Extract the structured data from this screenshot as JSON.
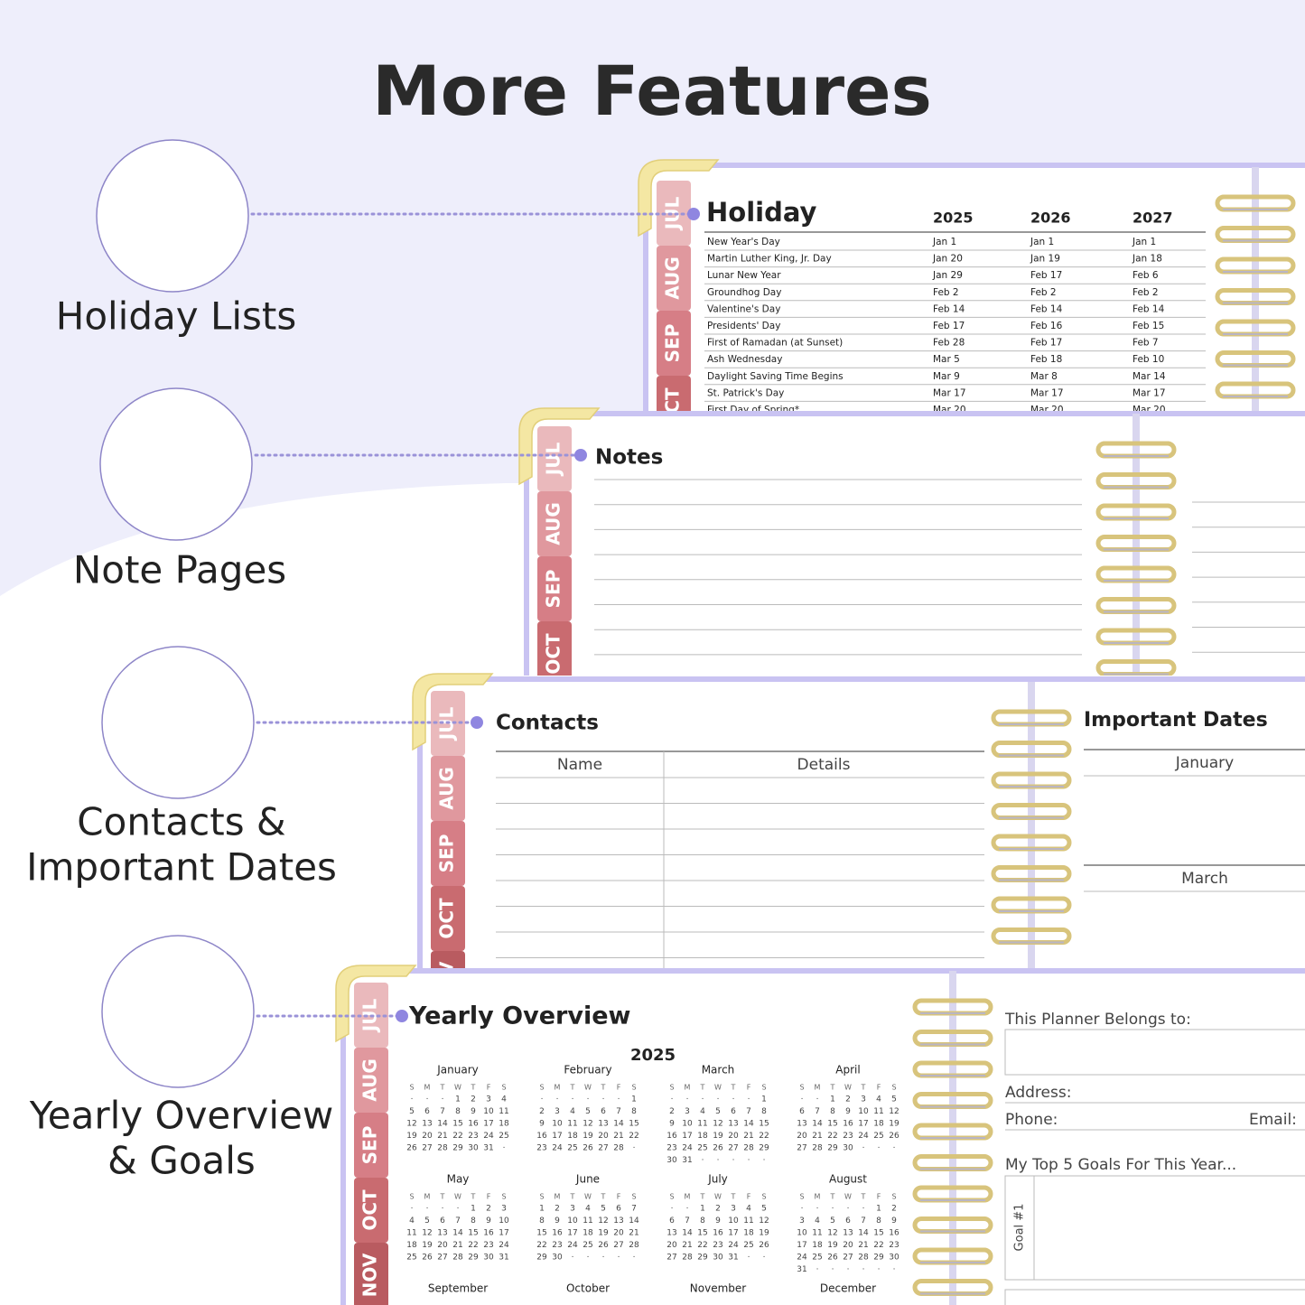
{
  "title": "More Features",
  "features": [
    {
      "lines": [
        "Holiday Lists"
      ]
    },
    {
      "lines": [
        "Note Pages"
      ]
    },
    {
      "lines": [
        "Contacts &",
        "Important Dates"
      ]
    },
    {
      "lines": [
        "Yearly Overview",
        "& Goals"
      ]
    }
  ],
  "tabs": [
    "JUL",
    "AUG",
    "SEP",
    "OCT",
    "NOV"
  ],
  "holiday": {
    "title": "Holiday",
    "years": [
      "2025",
      "2026",
      "2027"
    ],
    "rows": [
      [
        "New Year's Day",
        "Jan 1",
        "Jan 1",
        "Jan 1"
      ],
      [
        "Martin Luther King, Jr. Day",
        "Jan 20",
        "Jan 19",
        "Jan 18"
      ],
      [
        "Lunar New Year",
        "Jan 29",
        "Feb 17",
        "Feb 6"
      ],
      [
        "Groundhog Day",
        "Feb 2",
        "Feb 2",
        "Feb 2"
      ],
      [
        "Valentine's Day",
        "Feb 14",
        "Feb 14",
        "Feb 14"
      ],
      [
        "Presidents' Day",
        "Feb 17",
        "Feb 16",
        "Feb 15"
      ],
      [
        "First of Ramadan (at Sunset)",
        "Feb 28",
        "Feb 17",
        "Feb 7"
      ],
      [
        "Ash Wednesday",
        "Mar 5",
        "Feb 18",
        "Feb 10"
      ],
      [
        "Daylight Saving Time Begins",
        "Mar 9",
        "Mar 8",
        "Mar 14"
      ],
      [
        "St. Patrick's Day",
        "Mar 17",
        "Mar 17",
        "Mar 17"
      ],
      [
        "First Day of Spring*",
        "Mar 20",
        "Mar 20",
        "Mar 20"
      ]
    ]
  },
  "notes": {
    "title": "Notes"
  },
  "contacts": {
    "title": "Contacts",
    "columns": [
      "Name",
      "Details"
    ]
  },
  "important_dates": {
    "title": "Important Dates",
    "months": [
      "January",
      "March"
    ]
  },
  "yearly": {
    "title": "Yearly Overview",
    "year": "2025",
    "weekdays": [
      "S",
      "M",
      "T",
      "W",
      "T",
      "F",
      "S"
    ],
    "months": [
      {
        "name": "January",
        "weeks": [
          [
            "·",
            "·",
            "·",
            "1",
            "2",
            "3",
            "4"
          ],
          [
            "5",
            "6",
            "7",
            "8",
            "9",
            "10",
            "11"
          ],
          [
            "12",
            "13",
            "14",
            "15",
            "16",
            "17",
            "18"
          ],
          [
            "19",
            "20",
            "21",
            "22",
            "23",
            "24",
            "25"
          ],
          [
            "26",
            "27",
            "28",
            "29",
            "30",
            "31",
            "·"
          ]
        ]
      },
      {
        "name": "February",
        "weeks": [
          [
            "·",
            "·",
            "·",
            "·",
            "·",
            "·",
            "1"
          ],
          [
            "2",
            "3",
            "4",
            "5",
            "6",
            "7",
            "8"
          ],
          [
            "9",
            "10",
            "11",
            "12",
            "13",
            "14",
            "15"
          ],
          [
            "16",
            "17",
            "18",
            "19",
            "20",
            "21",
            "22"
          ],
          [
            "23",
            "24",
            "25",
            "26",
            "27",
            "28",
            "·"
          ]
        ]
      },
      {
        "name": "March",
        "weeks": [
          [
            "·",
            "·",
            "·",
            "·",
            "·",
            "·",
            "1"
          ],
          [
            "2",
            "3",
            "4",
            "5",
            "6",
            "7",
            "8"
          ],
          [
            "9",
            "10",
            "11",
            "12",
            "13",
            "14",
            "15"
          ],
          [
            "16",
            "17",
            "18",
            "19",
            "20",
            "21",
            "22"
          ],
          [
            "23",
            "24",
            "25",
            "26",
            "27",
            "28",
            "29"
          ],
          [
            "30",
            "31",
            "·",
            "·",
            "·",
            "·",
            "·"
          ]
        ]
      },
      {
        "name": "April",
        "weeks": [
          [
            "·",
            "·",
            "1",
            "2",
            "3",
            "4",
            "5"
          ],
          [
            "6",
            "7",
            "8",
            "9",
            "10",
            "11",
            "12"
          ],
          [
            "13",
            "14",
            "15",
            "16",
            "17",
            "18",
            "19"
          ],
          [
            "20",
            "21",
            "22",
            "23",
            "24",
            "25",
            "26"
          ],
          [
            "27",
            "28",
            "29",
            "30",
            "·",
            "·",
            "·"
          ]
        ]
      },
      {
        "name": "May",
        "weeks": [
          [
            "·",
            "·",
            "·",
            "·",
            "1",
            "2",
            "3"
          ],
          [
            "4",
            "5",
            "6",
            "7",
            "8",
            "9",
            "10"
          ],
          [
            "11",
            "12",
            "13",
            "14",
            "15",
            "16",
            "17"
          ],
          [
            "18",
            "19",
            "20",
            "21",
            "22",
            "23",
            "24"
          ],
          [
            "25",
            "26",
            "27",
            "28",
            "29",
            "30",
            "31"
          ]
        ]
      },
      {
        "name": "June",
        "weeks": [
          [
            "1",
            "2",
            "3",
            "4",
            "5",
            "6",
            "7"
          ],
          [
            "8",
            "9",
            "10",
            "11",
            "12",
            "13",
            "14"
          ],
          [
            "15",
            "16",
            "17",
            "18",
            "19",
            "20",
            "21"
          ],
          [
            "22",
            "23",
            "24",
            "25",
            "26",
            "27",
            "28"
          ],
          [
            "29",
            "30",
            "·",
            "·",
            "·",
            "·",
            "·"
          ]
        ]
      },
      {
        "name": "July",
        "weeks": [
          [
            "·",
            "·",
            "1",
            "2",
            "3",
            "4",
            "5"
          ],
          [
            "6",
            "7",
            "8",
            "9",
            "10",
            "11",
            "12"
          ],
          [
            "13",
            "14",
            "15",
            "16",
            "17",
            "18",
            "19"
          ],
          [
            "20",
            "21",
            "22",
            "23",
            "24",
            "25",
            "26"
          ],
          [
            "27",
            "28",
            "29",
            "30",
            "31",
            "·",
            "·"
          ]
        ]
      },
      {
        "name": "August",
        "weeks": [
          [
            "·",
            "·",
            "·",
            "·",
            "·",
            "1",
            "2"
          ],
          [
            "3",
            "4",
            "5",
            "6",
            "7",
            "8",
            "9"
          ],
          [
            "10",
            "11",
            "12",
            "13",
            "14",
            "15",
            "16"
          ],
          [
            "17",
            "18",
            "19",
            "20",
            "21",
            "22",
            "23"
          ],
          [
            "24",
            "25",
            "26",
            "27",
            "28",
            "29",
            "30"
          ],
          [
            "31",
            "·",
            "·",
            "·",
            "·",
            "·",
            "·"
          ]
        ]
      },
      {
        "name": "September"
      },
      {
        "name": "October"
      },
      {
        "name": "November"
      },
      {
        "name": "December"
      }
    ]
  },
  "owner": {
    "belongs": "This Planner Belongs to:",
    "address": "Address:",
    "phone": "Phone:",
    "email": "Email:",
    "goals": "My Top 5 Goals For This Year...",
    "goal1": "Goal #1"
  }
}
